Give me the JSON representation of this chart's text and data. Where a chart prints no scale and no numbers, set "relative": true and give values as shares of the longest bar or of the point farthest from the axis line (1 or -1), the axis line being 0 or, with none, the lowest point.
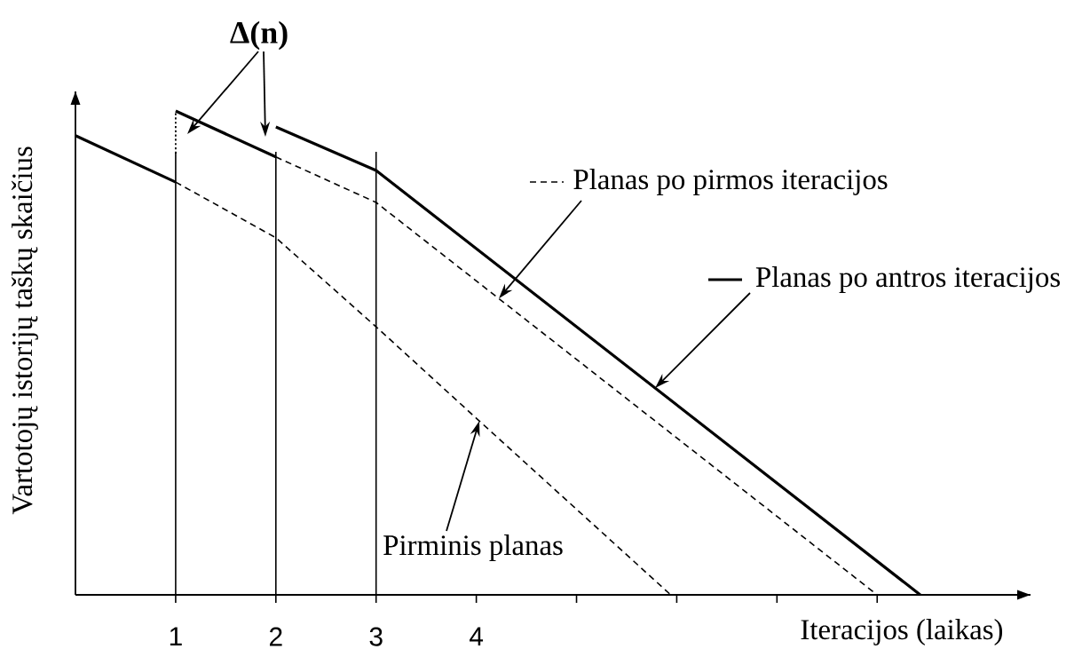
{
  "chart_data": {
    "type": "line",
    "xlabel": "Iteracijos (laikas)",
    "ylabel": "Vartotojų istorijų taškų skaičius",
    "annotations": [
      "Δ(n)"
    ],
    "relative": true,
    "legend": "top right",
    "xlim": [
      0,
      9.53
    ],
    "xticks": [
      1,
      2,
      3,
      4,
      {
        "value": 5,
        "label": null
      },
      {
        "value": 6,
        "label": null
      },
      {
        "value": 7,
        "label": null
      },
      {
        "value": 8,
        "label": null
      }
    ],
    "ref_lines": [
      {
        "axis": "x",
        "value": 1
      },
      {
        "axis": "x",
        "value": 2
      },
      {
        "axis": "x",
        "value": 3
      }
    ],
    "series": [
      {
        "name": "Pirminis planas",
        "color": "#000000",
        "line_style": "dashed",
        "x": [
          1,
          2,
          3,
          4,
          5.94
        ],
        "values": [
          0.853,
          0.738,
          0.554,
          0.365,
          0
        ]
      },
      {
        "name": "Planas po pirmos iteracijos",
        "color": "#000000",
        "line_style": "dashed",
        "x": [
          2,
          3,
          8
        ],
        "values": [
          0.905,
          0.811,
          0
        ]
      },
      {
        "name": "Planas po antros iteracijos",
        "color": "#000000",
        "line_style": "solid",
        "x": [
          2,
          3,
          8.43
        ],
        "values": [
          0.967,
          0.877,
          0
        ]
      },
      {
        "color": "#000000",
        "line_style": "solid",
        "x": [
          0,
          1
        ],
        "values": [
          0.949,
          0.853
        ]
      },
      {
        "color": "#000000",
        "line_style": "solid",
        "x": [
          1,
          2
        ],
        "values": [
          1.0,
          0.905
        ]
      },
      {
        "color": "#000000",
        "line_style": "dotted",
        "x": [
          1,
          1
        ],
        "values": [
          0.912,
          1.0
        ]
      }
    ]
  }
}
